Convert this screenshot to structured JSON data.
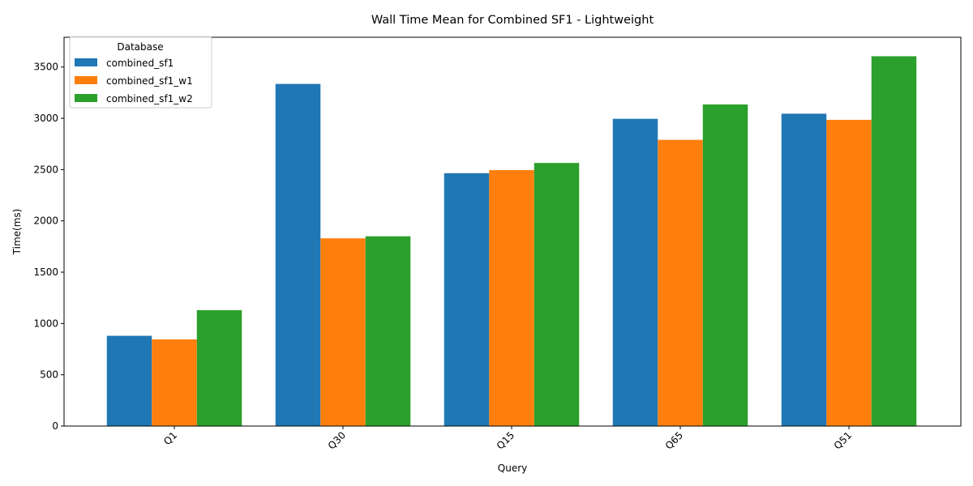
{
  "chart_data": {
    "type": "bar",
    "title": "Wall Time Mean for Combined SF1 - Lightweight",
    "xlabel": "Query",
    "ylabel": "Time(ms)",
    "categories": [
      "Q1",
      "Q30",
      "Q15",
      "Q65",
      "Q51"
    ],
    "series": [
      {
        "name": "combined_sf1",
        "color": "#1f77b4",
        "values": [
          880,
          3335,
          2465,
          2995,
          3045
        ]
      },
      {
        "name": "combined_sf1_w1",
        "color": "#ff7f0e",
        "values": [
          845,
          1830,
          2495,
          2790,
          2985
        ]
      },
      {
        "name": "combined_sf1_w2",
        "color": "#2ca02c",
        "values": [
          1130,
          1850,
          2565,
          3135,
          3605
        ]
      }
    ],
    "ylim": [
      0,
      3790
    ],
    "yticks": [
      0,
      500,
      1000,
      1500,
      2000,
      2500,
      3000,
      3500
    ],
    "grid": false,
    "legend": {
      "title": "Database",
      "placement": "top-left"
    }
  }
}
